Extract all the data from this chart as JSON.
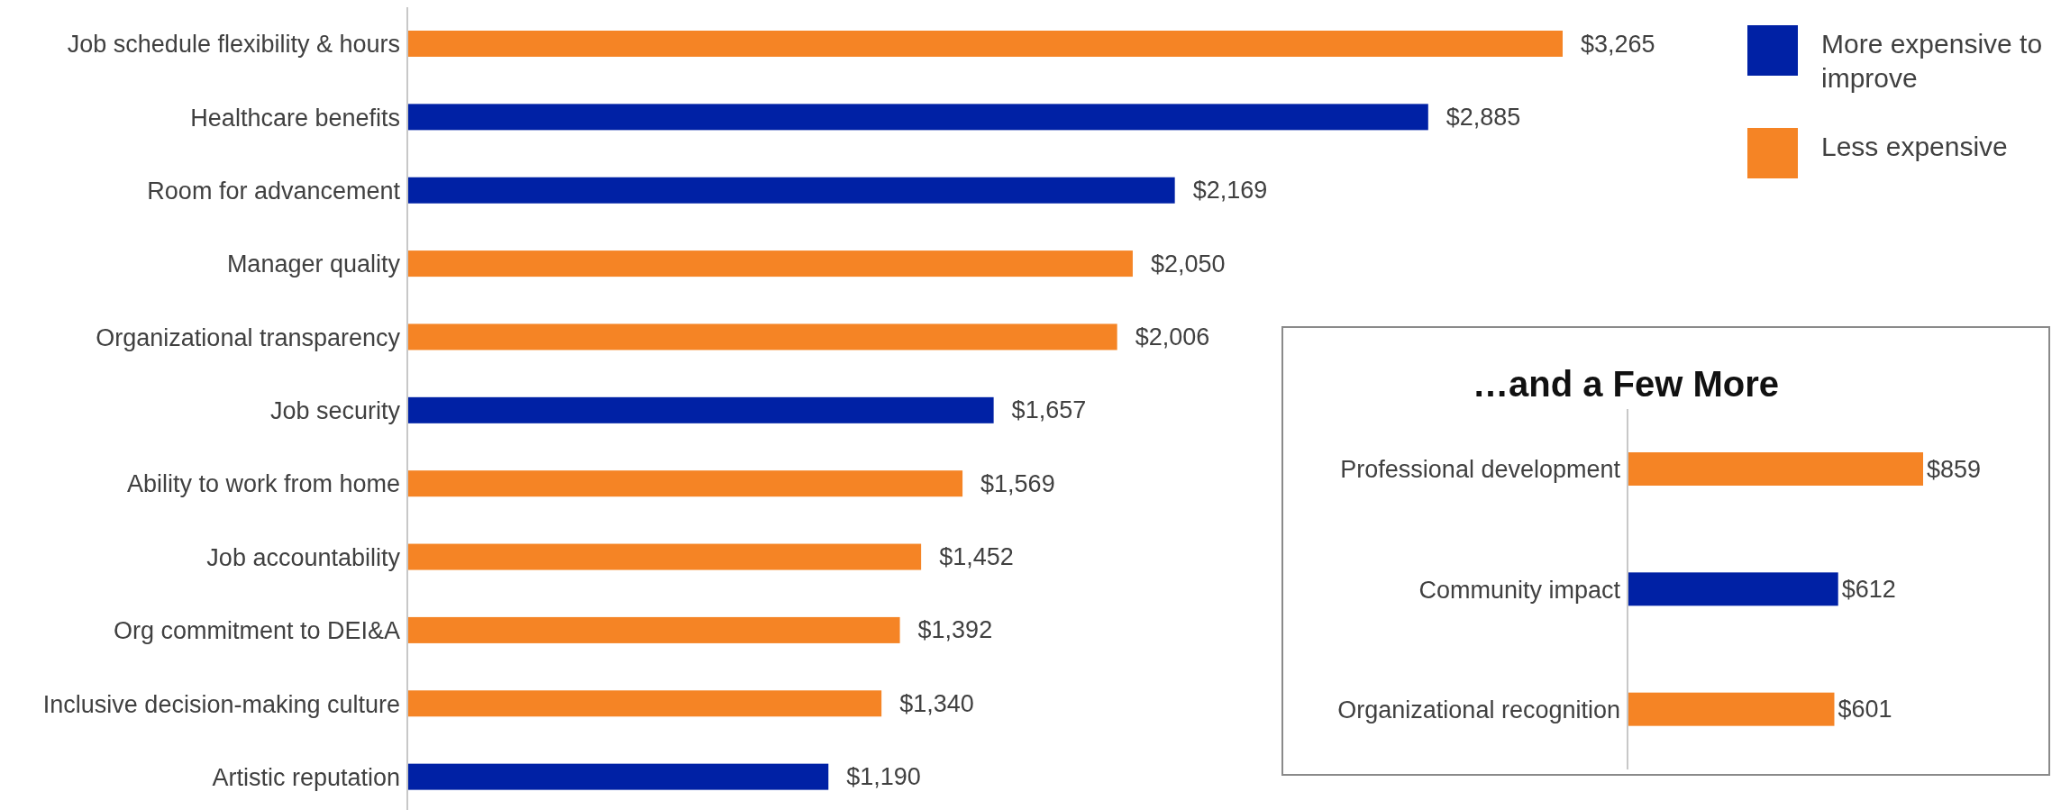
{
  "chart_data": [
    {
      "type": "bar",
      "orientation": "horizontal",
      "stacked": true,
      "legend": "top right",
      "categories": [
        "Job schedule flexibility & hours",
        "Healthcare benefits",
        "Room for advancement",
        "Manager quality",
        "Organizational transparency",
        "Job security",
        "Ability to work from home",
        "Job accountability",
        "Org commitment to DEI&A",
        "Inclusive decision-making culture",
        "Artistic reputation"
      ],
      "series": [
        {
          "name": "More expensive to improve",
          "color": "#0021a5",
          "values": [
            null,
            2885,
            2169,
            null,
            null,
            1657,
            null,
            null,
            null,
            null,
            1190
          ],
          "value_labels": [
            null,
            "$2,885",
            "$2,169",
            null,
            null,
            "$1,657",
            null,
            null,
            null,
            null,
            "$1,190"
          ]
        },
        {
          "name": "Less expensive",
          "color": "#f58425",
          "values": [
            3265,
            null,
            null,
            2050,
            2006,
            null,
            1569,
            1452,
            1392,
            1340,
            null
          ],
          "value_labels": [
            "$3,265",
            null,
            null,
            "$2,050",
            "$2,006",
            null,
            "$1,569",
            "$1,452",
            "$1,392",
            "$1,340",
            null
          ]
        }
      ]
    },
    {
      "type": "bar",
      "orientation": "horizontal",
      "stacked": true,
      "title": "…and a Few More",
      "categories": [
        "Professional development",
        "Community impact",
        "Organizational recognition"
      ],
      "series": [
        {
          "color": "#0021a5",
          "values": [
            null,
            612,
            null
          ],
          "value_labels": [
            null,
            "$612",
            null
          ]
        },
        {
          "color": "#f58425",
          "values": [
            859,
            null,
            601
          ],
          "value_labels": [
            "$859",
            null,
            "$601"
          ]
        }
      ]
    }
  ]
}
